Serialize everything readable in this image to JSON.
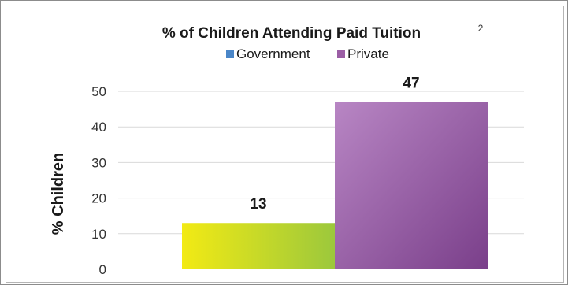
{
  "chart_data": {
    "type": "bar",
    "title": "% of Children Attending Paid Tuition",
    "superscript": "2",
    "ylabel": "% Children",
    "xlabel": "",
    "ylim": [
      0,
      50
    ],
    "yticks": [
      "0",
      "10",
      "20",
      "30",
      "40",
      "50"
    ],
    "grid": true,
    "legend_position": "top-center",
    "categories": [
      "Government",
      "Private"
    ],
    "values": [
      13,
      47
    ],
    "data_labels": [
      "13",
      "47"
    ],
    "series": [
      {
        "name": "Government",
        "value": 13,
        "color": "#c6d92e",
        "gradient": [
          "#f2ea14",
          "#9cc83c"
        ],
        "legend_color": "#4a86c8"
      },
      {
        "name": "Private",
        "value": 47,
        "color": "#9b5ea5",
        "gradient": [
          "#b886c4",
          "#7a3f8a"
        ],
        "legend_color": "#9b5ea5"
      }
    ]
  }
}
